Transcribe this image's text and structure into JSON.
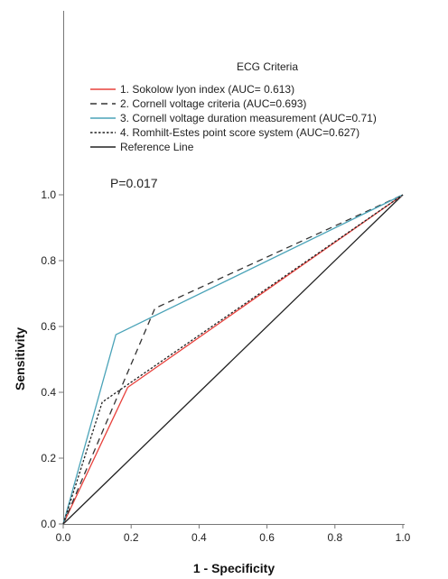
{
  "chart_data": {
    "type": "line",
    "title": "",
    "xlabel": "1 - Specificity",
    "ylabel": "Sensitivity",
    "xlim": [
      0,
      1
    ],
    "ylim": [
      0,
      1
    ],
    "x_ticks": [
      0.0,
      0.2,
      0.4,
      0.6,
      0.8,
      1.0
    ],
    "x_tick_labels": [
      "0.0",
      "0.2",
      "0.4",
      "0.6",
      "0.8",
      "1.0"
    ],
    "y_ticks": [
      0.0,
      0.2,
      0.4,
      0.6,
      0.8,
      1.0
    ],
    "y_tick_labels": [
      "0.0",
      "0.2",
      "0.4",
      "0.6",
      "0.8",
      "1.0"
    ],
    "grid": false,
    "legend": {
      "title": "ECG Criteria",
      "position": "top-right"
    },
    "annotation": "P=0.017",
    "series": [
      {
        "name": "1. Sokolow lyon index (AUC= 0.613)",
        "color": "#e8413c",
        "dash": "solid",
        "points": [
          [
            0,
            0
          ],
          [
            0.19,
            0.415
          ],
          [
            1,
            1
          ]
        ]
      },
      {
        "name": "2. Cornell voltage criteria (AUC=0.693)",
        "color": "#333333",
        "dash": "dashed",
        "points": [
          [
            0,
            0
          ],
          [
            0.27,
            0.655
          ],
          [
            1,
            1
          ]
        ]
      },
      {
        "name": "3. Cornell voltage duration measurement (AUC=0.71)",
        "color": "#4aa3b8",
        "dash": "solid",
        "points": [
          [
            0,
            0
          ],
          [
            0.155,
            0.575
          ],
          [
            1,
            1
          ]
        ]
      },
      {
        "name": "4. Romhilt-Estes point score system (AUC=0.627)",
        "color": "#222222",
        "dash": "dotted",
        "points": [
          [
            0,
            0
          ],
          [
            0.115,
            0.37
          ],
          [
            1,
            1
          ]
        ]
      },
      {
        "name": "Reference Line",
        "color": "#222222",
        "dash": "solid",
        "points": [
          [
            0,
            0
          ],
          [
            1,
            1
          ]
        ]
      }
    ]
  }
}
